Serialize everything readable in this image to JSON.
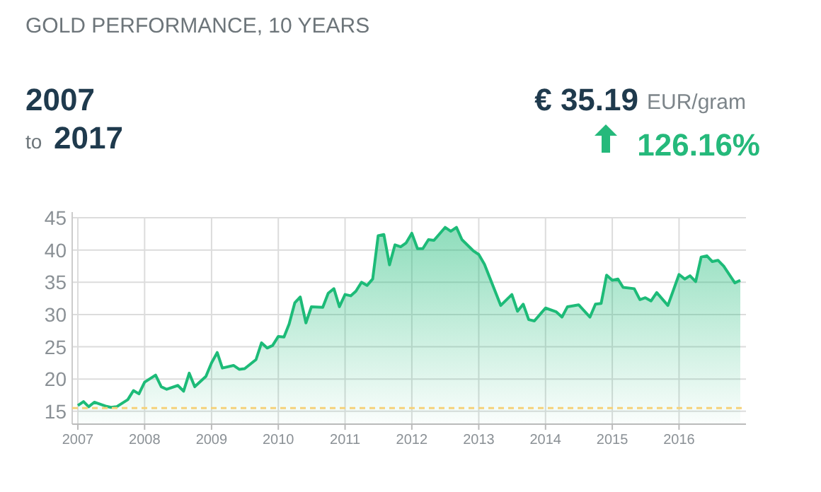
{
  "chart_data": {
    "type": "area",
    "title": "GOLD PERFORMANCE, 10 YEARS",
    "annotations": [
      "2007",
      "to",
      "2017",
      "€ 35.19",
      "EUR/gram",
      "126.16%"
    ],
    "x": [
      "2007-01",
      "2007-02",
      "2007-03",
      "2007-04",
      "2007-06",
      "2007-07",
      "2007-08",
      "2007-10",
      "2007-11",
      "2007-12",
      "2008-01",
      "2008-03",
      "2008-04",
      "2008-05",
      "2008-07",
      "2008-08",
      "2008-09",
      "2008-10",
      "2008-12",
      "2009-01",
      "2009-02",
      "2009-03",
      "2009-05",
      "2009-06",
      "2009-07",
      "2009-09",
      "2009-10",
      "2009-11",
      "2009-12",
      "2010-01",
      "2010-02",
      "2010-03",
      "2010-04",
      "2010-05",
      "2010-06",
      "2010-07",
      "2010-09",
      "2010-10",
      "2010-11",
      "2010-12",
      "2011-01",
      "2011-02",
      "2011-03",
      "2011-04",
      "2011-05",
      "2011-06",
      "2011-07",
      "2011-08",
      "2011-09",
      "2011-10",
      "2011-11",
      "2011-12",
      "2012-01",
      "2012-02",
      "2012-03",
      "2012-04",
      "2012-05",
      "2012-07",
      "2012-08",
      "2012-09",
      "2012-10",
      "2012-12",
      "2013-01",
      "2013-02",
      "2013-05",
      "2013-07",
      "2013-08",
      "2013-09",
      "2013-10",
      "2013-11",
      "2014-01",
      "2014-03",
      "2014-04",
      "2014-05",
      "2014-07",
      "2014-09",
      "2014-10",
      "2014-11",
      "2014-12",
      "2015-01",
      "2015-02",
      "2015-03",
      "2015-05",
      "2015-06",
      "2015-07",
      "2015-08",
      "2015-09",
      "2015-11",
      "2016-01",
      "2016-02",
      "2016-03",
      "2016-04",
      "2016-05",
      "2016-06",
      "2016-07",
      "2016-08",
      "2016-09",
      "2016-11",
      "2016-12"
    ],
    "series": [
      {
        "color": "#1dbb78",
        "values": [
          15.9,
          16.5,
          15.7,
          16.4,
          15.8,
          15.6,
          15.7,
          16.8,
          18.2,
          17.7,
          19.5,
          20.6,
          18.8,
          18.4,
          19.0,
          18.1,
          20.9,
          18.8,
          20.4,
          22.5,
          24.1,
          21.7,
          22.1,
          21.5,
          21.6,
          23.0,
          25.6,
          24.8,
          25.2,
          26.6,
          26.5,
          28.5,
          31.8,
          32.7,
          28.7,
          31.2,
          31.1,
          33.3,
          34.0,
          31.2,
          33.1,
          32.9,
          33.6,
          35.0,
          34.5,
          35.5,
          42.2,
          42.4,
          37.7,
          40.8,
          40.5,
          41.1,
          42.6,
          40.2,
          40.2,
          41.6,
          41.5,
          43.5,
          42.9,
          43.5,
          41.6,
          39.9,
          39.3,
          37.8,
          31.4,
          33.1,
          30.5,
          31.6,
          29.2,
          29.0,
          31.0,
          30.4,
          29.6,
          31.2,
          31.5,
          29.6,
          31.6,
          31.7,
          36.1,
          35.3,
          35.5,
          34.2,
          34.0,
          32.3,
          32.6,
          32.1,
          33.4,
          31.4,
          36.2,
          35.5,
          36.0,
          35.1,
          38.9,
          39.1,
          38.2,
          38.4,
          37.5,
          34.9,
          35.3
        ]
      }
    ],
    "xlim": [
      "2007-01",
      "2017-01"
    ],
    "ylim": [
      13,
      45
    ],
    "xticks": [
      "2007",
      "2008",
      "2009",
      "2010",
      "2011",
      "2012",
      "2013",
      "2014",
      "2015",
      "2016"
    ],
    "yticks": [
      15,
      20,
      25,
      30,
      35,
      40,
      45
    ],
    "grid": true,
    "ref_lines": [
      {
        "axis": "y",
        "value": 15.5,
        "color": "#f5d27a",
        "line_style": "dashed"
      }
    ]
  }
}
